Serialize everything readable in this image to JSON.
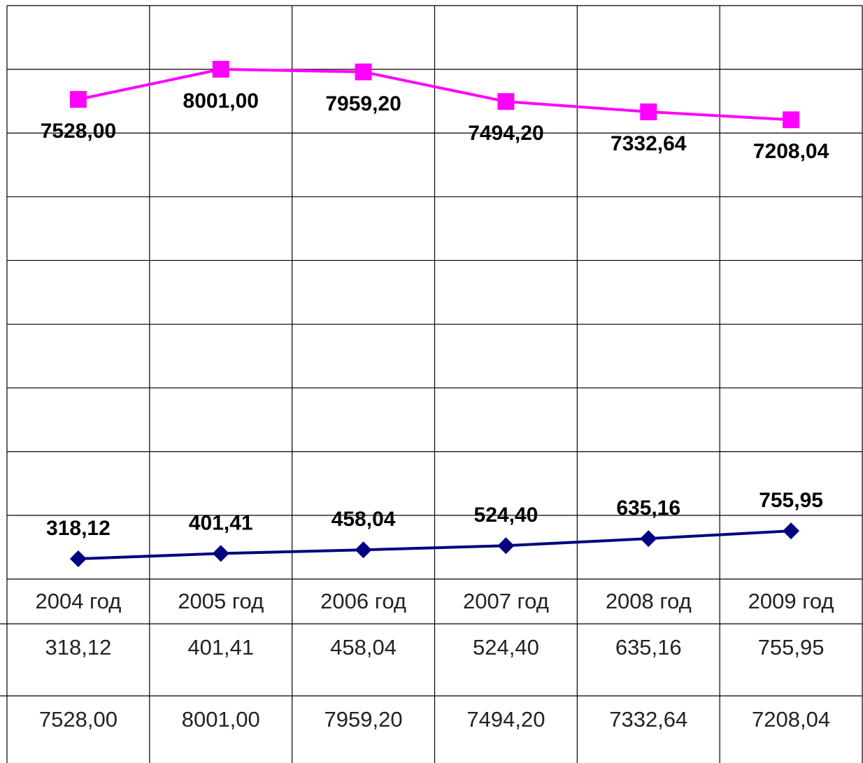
{
  "chart_data": {
    "type": "line",
    "categories": [
      "2004 год",
      "2005 год",
      "2006 год",
      "2007 год",
      "2008 год",
      "2009 год"
    ],
    "series": [
      {
        "color": "#000080",
        "marker": "diamond",
        "values": [
          318.12,
          401.41,
          458.04,
          524.4,
          635.16,
          755.95
        ],
        "value_labels": [
          "318,12",
          "401,41",
          "458,04",
          "524,40",
          "635,16",
          "755,95"
        ]
      },
      {
        "color": "#ff00ff",
        "marker": "square",
        "values": [
          7528.0,
          8001.0,
          7959.2,
          7494.2,
          7332.64,
          7208.04
        ],
        "value_labels": [
          "7528,00",
          "8001,00",
          "7959,20",
          "7494,20",
          "7332,64",
          "7208,04"
        ]
      }
    ],
    "ylim": [
      0,
      9000
    ],
    "yticks": [
      0,
      1000,
      2000,
      3000,
      4000,
      5000,
      6000,
      7000,
      8000,
      9000
    ],
    "grid": true
  }
}
